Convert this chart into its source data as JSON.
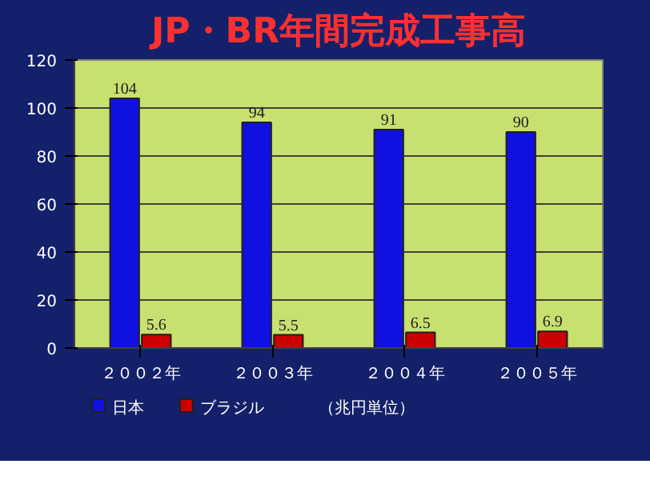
{
  "chart_data": {
    "type": "bar",
    "title": "JP・BR年間完成工事高",
    "categories": [
      "２００２年",
      "２００３年",
      "２００４年",
      "２００５年"
    ],
    "series": [
      {
        "name": "日本",
        "color": "#1010e0",
        "values": [
          104,
          94,
          91,
          90
        ]
      },
      {
        "name": "ブラジル",
        "color": "#cc0000",
        "values": [
          5.6,
          5.5,
          6.5,
          6.9
        ]
      }
    ],
    "ylim": [
      0,
      120
    ],
    "yticks": [
      0,
      20,
      40,
      60,
      80,
      100,
      120
    ],
    "grid": "y",
    "legend": "bottom",
    "data_labels": true,
    "annotations": [
      "（兆円単位）"
    ]
  }
}
